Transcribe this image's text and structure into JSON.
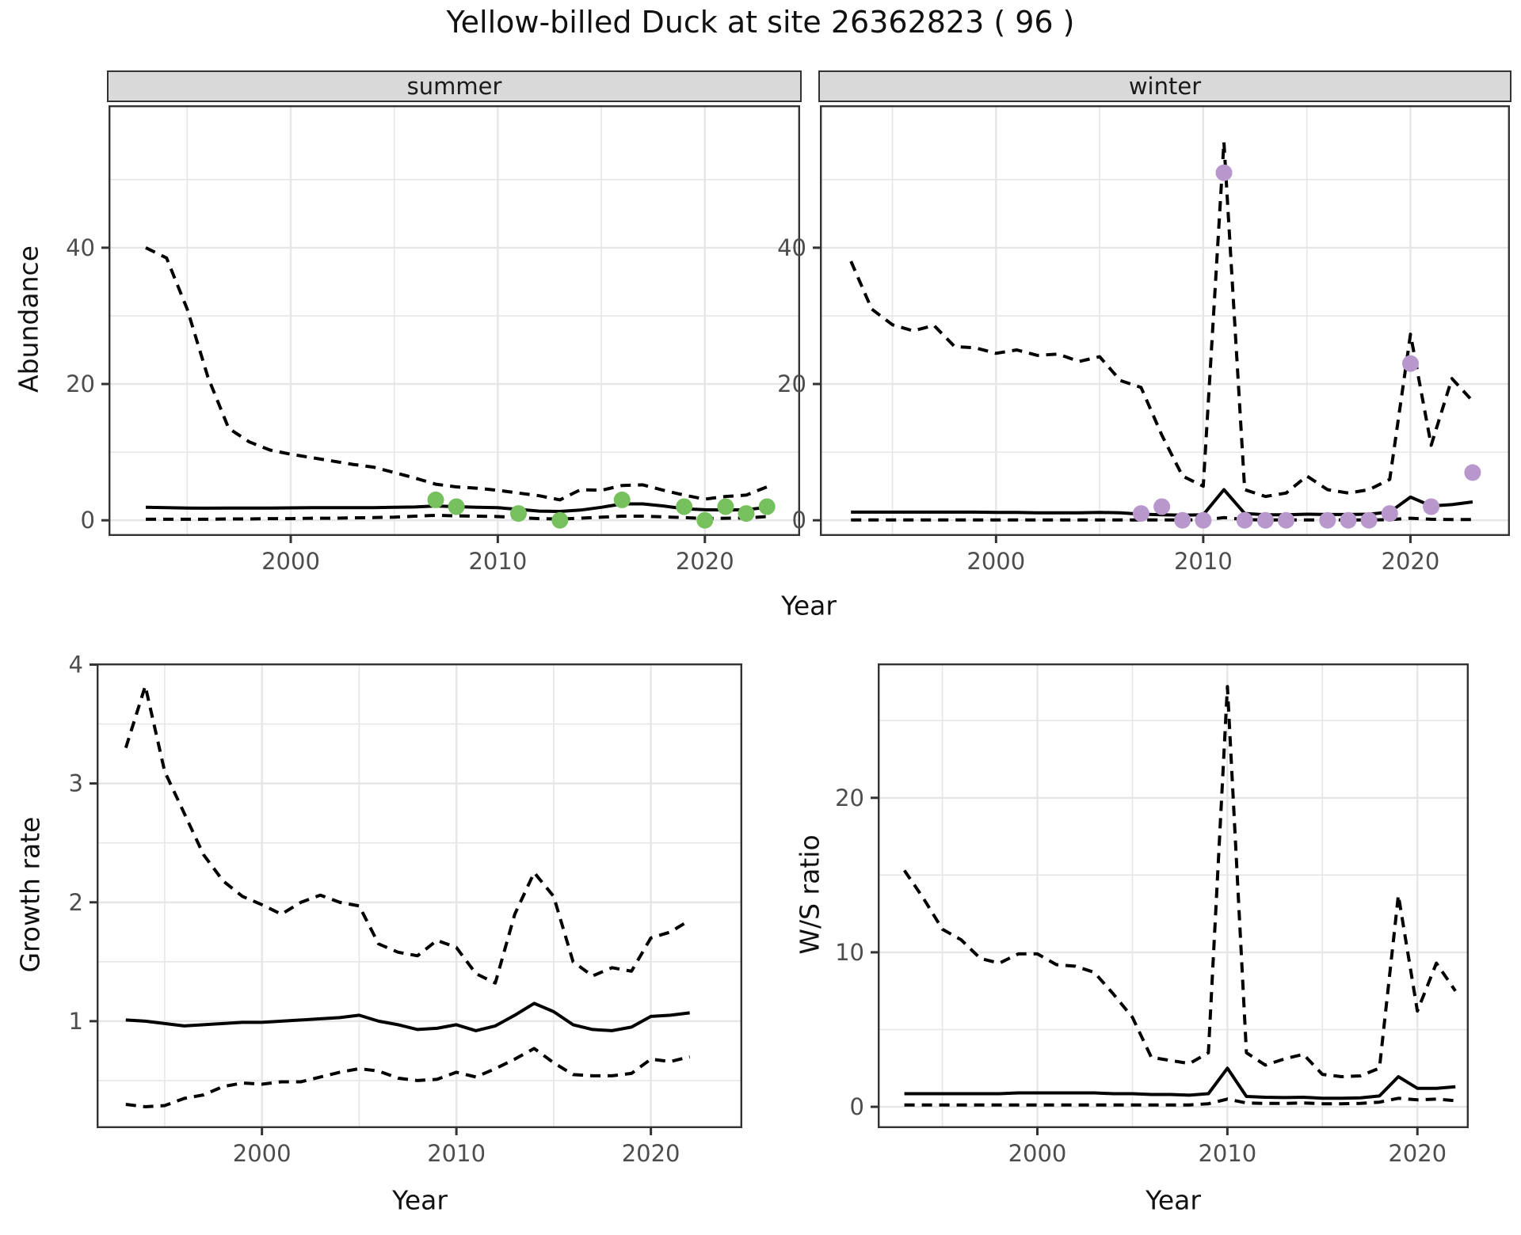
{
  "title": "Yellow-billed Duck at site 26362823 ( 96 )",
  "labels": {
    "facet_summer": "summer",
    "facet_winter": "winter",
    "y_top": "Abundance",
    "y_growth": "Growth rate",
    "y_ws": "W/S ratio",
    "x_top": "Year",
    "x_growth": "Year",
    "x_ws": "Year"
  },
  "colors": {
    "summer_point": "#76c05e",
    "winter_point": "#b897cc",
    "grid": "#e6e6e6",
    "panel_border": "#333333",
    "line": "#000000",
    "strip_bg": "#d9d9d9",
    "tick_text": "#4d4d4d"
  },
  "chart_data": [
    {
      "id": "summer",
      "type": "line",
      "facet_label": "summer",
      "xlabel": "Year",
      "ylabel": "Abundance",
      "xlim": [
        1991.2,
        2024.6
      ],
      "ylim": [
        -2.3,
        60.9
      ],
      "x_ticks": {
        "values": [
          2000,
          2010,
          2020
        ],
        "labels": [
          "2000",
          "2010",
          "2020"
        ]
      },
      "y_ticks": {
        "values": [
          0,
          20,
          40
        ],
        "labels": [
          "0",
          "20",
          "40"
        ]
      },
      "x_grid_minor": [
        1995,
        2005,
        2015
      ],
      "y_grid_minor": [
        10,
        30,
        50
      ],
      "years": [
        1993,
        1994,
        1995,
        1996,
        1997,
        1998,
        1999,
        2000,
        2001,
        2002,
        2003,
        2004,
        2005,
        2006,
        2007,
        2008,
        2009,
        2010,
        2011,
        2012,
        2013,
        2014,
        2015,
        2016,
        2017,
        2018,
        2019,
        2020,
        2021,
        2022,
        2023
      ],
      "series": [
        {
          "name": "upper_ci",
          "style": "dashed",
          "values": [
            40,
            38.5,
            31,
            21,
            13.5,
            11.5,
            10.3,
            9.7,
            9.2,
            8.7,
            8.2,
            7.8,
            7.0,
            6.2,
            5.3,
            4.9,
            4.7,
            4.4,
            4.0,
            3.6,
            3.0,
            4.5,
            4.4,
            5.1,
            5.2,
            4.4,
            3.7,
            3.1,
            3.5,
            3.7,
            4.9
          ]
        },
        {
          "name": "median",
          "style": "solid",
          "values": [
            1.9,
            1.85,
            1.8,
            1.78,
            1.8,
            1.8,
            1.8,
            1.82,
            1.85,
            1.85,
            1.85,
            1.85,
            1.9,
            1.95,
            2.1,
            2.0,
            1.9,
            1.85,
            1.6,
            1.35,
            1.3,
            1.5,
            1.9,
            2.4,
            2.4,
            2.1,
            1.7,
            1.55,
            1.5,
            1.55,
            1.9
          ]
        },
        {
          "name": "lower_ci",
          "style": "dashed",
          "values": [
            0.15,
            0.15,
            0.15,
            0.15,
            0.2,
            0.2,
            0.25,
            0.25,
            0.3,
            0.3,
            0.35,
            0.4,
            0.47,
            0.6,
            0.73,
            0.65,
            0.6,
            0.55,
            0.4,
            0.25,
            0.2,
            0.3,
            0.45,
            0.6,
            0.6,
            0.5,
            0.4,
            0.25,
            0.3,
            0.35,
            0.55
          ]
        }
      ],
      "points": {
        "name": "observed_counts",
        "color_key": "summer_point",
        "years": [
          2007,
          2008,
          2011,
          2013,
          2016,
          2019,
          2020,
          2021,
          2022,
          2023
        ],
        "values": [
          3,
          2,
          1,
          0,
          3,
          2,
          0,
          2,
          1,
          2
        ]
      }
    },
    {
      "id": "winter",
      "type": "line",
      "facet_label": "winter",
      "xlabel": "Year",
      "ylabel": "Abundance",
      "xlim": [
        1991.5,
        2024.8
      ],
      "ylim": [
        -2.3,
        60.9
      ],
      "x_ticks": {
        "values": [
          2000,
          2010,
          2020
        ],
        "labels": [
          "2000",
          "2010",
          "2020"
        ]
      },
      "y_ticks": {
        "values": [
          0,
          20,
          40
        ],
        "labels": [
          "0",
          "20",
          "40"
        ]
      },
      "x_grid_minor": [
        1995,
        2005,
        2015
      ],
      "y_grid_minor": [
        10,
        30,
        50
      ],
      "years": [
        1993,
        1994,
        1995,
        1996,
        1997,
        1998,
        1999,
        2000,
        2001,
        2002,
        2003,
        2004,
        2005,
        2006,
        2007,
        2008,
        2009,
        2010,
        2011,
        2012,
        2013,
        2014,
        2015,
        2016,
        2017,
        2018,
        2019,
        2020,
        2021,
        2022,
        2023
      ],
      "series": [
        {
          "name": "upper_ci",
          "style": "dashed",
          "values": [
            38,
            31,
            28.7,
            27.8,
            28.6,
            25.5,
            25.3,
            24.5,
            25,
            24.2,
            24.4,
            23.3,
            24,
            20.5,
            19.5,
            12.5,
            6.5,
            5,
            55.5,
            4.5,
            3.5,
            4,
            6.5,
            4.5,
            4,
            4.5,
            6,
            27.3,
            11,
            20.8,
            17.5
          ]
        },
        {
          "name": "median",
          "style": "solid",
          "values": [
            1.2,
            1.2,
            1.2,
            1.2,
            1.2,
            1.2,
            1.2,
            1.15,
            1.15,
            1.1,
            1.1,
            1.1,
            1.15,
            1.1,
            0.9,
            0.8,
            0.75,
            0.8,
            4.5,
            1.0,
            0.8,
            0.8,
            0.9,
            0.85,
            0.85,
            0.9,
            1.2,
            3.4,
            2.1,
            2.3,
            2.7
          ]
        },
        {
          "name": "lower_ci",
          "style": "dashed",
          "values": [
            0.05,
            0.05,
            0.05,
            0.05,
            0.05,
            0.05,
            0.05,
            0.05,
            0.05,
            0.05,
            0.05,
            0.05,
            0.05,
            0.05,
            0.05,
            0.05,
            0.05,
            0.05,
            0.4,
            0.1,
            0.05,
            0.05,
            0.05,
            0.05,
            0.05,
            0.05,
            0.1,
            0.3,
            0.15,
            0.1,
            0.1
          ]
        }
      ],
      "points": {
        "name": "observed_counts",
        "color_key": "winter_point",
        "years": [
          2007,
          2008,
          2009,
          2010,
          2011,
          2012,
          2013,
          2014,
          2016,
          2017,
          2018,
          2019,
          2020,
          2021,
          2023
        ],
        "values": [
          1,
          2,
          0,
          0,
          51,
          0,
          0,
          0,
          0,
          0,
          0,
          1,
          23,
          2,
          7
        ]
      }
    },
    {
      "id": "growth",
      "type": "line",
      "facet_label": "",
      "xlabel": "Year",
      "ylabel": "Growth rate",
      "xlim": [
        1991.5,
        2024.7
      ],
      "ylim": [
        0.1,
        4.01
      ],
      "x_ticks": {
        "values": [
          2000,
          2010,
          2020
        ],
        "labels": [
          "2000",
          "2010",
          "2020"
        ]
      },
      "y_ticks": {
        "values": [
          1,
          2,
          3,
          4
        ],
        "labels": [
          "1",
          "2",
          "3",
          "4"
        ]
      },
      "x_grid_minor": [
        1995,
        2005,
        2015
      ],
      "y_grid_minor": [
        0.5,
        1.5,
        2.5,
        3.5
      ],
      "years": [
        1993,
        1994,
        1995,
        1996,
        1997,
        1998,
        1999,
        2000,
        2001,
        2002,
        2003,
        2004,
        2005,
        2006,
        2007,
        2008,
        2009,
        2010,
        2011,
        2012,
        2013,
        2014,
        2015,
        2016,
        2017,
        2018,
        2019,
        2020,
        2021,
        2022
      ],
      "series": [
        {
          "name": "upper_ci",
          "style": "dashed",
          "values": [
            3.3,
            3.82,
            3.1,
            2.75,
            2.4,
            2.18,
            2.05,
            1.98,
            1.9,
            2.0,
            2.06,
            2.0,
            1.97,
            1.65,
            1.58,
            1.55,
            1.68,
            1.62,
            1.4,
            1.32,
            1.9,
            2.25,
            2.05,
            1.5,
            1.38,
            1.45,
            1.42,
            1.7,
            1.75,
            1.85
          ]
        },
        {
          "name": "median",
          "style": "solid",
          "values": [
            1.01,
            1.0,
            0.98,
            0.96,
            0.97,
            0.98,
            0.99,
            0.99,
            1.0,
            1.01,
            1.02,
            1.03,
            1.05,
            1.0,
            0.97,
            0.93,
            0.94,
            0.97,
            0.92,
            0.96,
            1.05,
            1.15,
            1.08,
            0.97,
            0.93,
            0.92,
            0.95,
            1.04,
            1.05,
            1.07
          ]
        },
        {
          "name": "lower_ci",
          "style": "dashed",
          "values": [
            0.3,
            0.28,
            0.29,
            0.35,
            0.38,
            0.45,
            0.48,
            0.47,
            0.49,
            0.49,
            0.53,
            0.57,
            0.6,
            0.58,
            0.52,
            0.5,
            0.51,
            0.57,
            0.53,
            0.6,
            0.68,
            0.77,
            0.65,
            0.55,
            0.54,
            0.54,
            0.56,
            0.68,
            0.66,
            0.7
          ]
        }
      ],
      "points": null
    },
    {
      "id": "ws",
      "type": "line",
      "facet_label": "",
      "xlabel": "Year",
      "ylabel": "W/S ratio",
      "xlim": [
        1991.6,
        2022.7
      ],
      "ylim": [
        -1.38,
        28.7
      ],
      "x_ticks": {
        "values": [
          2000,
          2010,
          2020
        ],
        "labels": [
          "2000",
          "2010",
          "2020"
        ]
      },
      "y_ticks": {
        "values": [
          0,
          10,
          20
        ],
        "labels": [
          "0",
          "10",
          "20"
        ]
      },
      "x_grid_minor": [
        1995,
        2005,
        2015
      ],
      "y_grid_minor": [
        5,
        15,
        25
      ],
      "years": [
        1993,
        1994,
        1995,
        1996,
        1997,
        1998,
        1999,
        2000,
        2001,
        2002,
        2003,
        2004,
        2005,
        2006,
        2007,
        2008,
        2009,
        2010,
        2011,
        2012,
        2013,
        2014,
        2015,
        2016,
        2017,
        2018,
        2019,
        2020,
        2021,
        2022
      ],
      "series": [
        {
          "name": "upper_ci",
          "style": "dashed",
          "values": [
            15.3,
            13.5,
            11.5,
            10.8,
            9.6,
            9.3,
            9.9,
            9.9,
            9.2,
            9.1,
            8.7,
            7.3,
            5.8,
            3.2,
            3.0,
            2.8,
            3.5,
            27.2,
            3.5,
            2.7,
            3.1,
            3.4,
            2.1,
            1.95,
            2.0,
            2.5,
            13.7,
            6.2,
            9.3,
            7.5
          ]
        },
        {
          "name": "median",
          "style": "solid",
          "values": [
            0.85,
            0.85,
            0.85,
            0.85,
            0.85,
            0.85,
            0.9,
            0.9,
            0.9,
            0.9,
            0.9,
            0.85,
            0.85,
            0.8,
            0.8,
            0.75,
            0.85,
            2.5,
            0.67,
            0.62,
            0.6,
            0.62,
            0.55,
            0.55,
            0.58,
            0.7,
            1.95,
            1.2,
            1.2,
            1.3
          ]
        },
        {
          "name": "lower_ci",
          "style": "dashed",
          "values": [
            0.12,
            0.12,
            0.12,
            0.12,
            0.12,
            0.12,
            0.12,
            0.12,
            0.12,
            0.12,
            0.12,
            0.12,
            0.12,
            0.12,
            0.12,
            0.12,
            0.2,
            0.5,
            0.25,
            0.22,
            0.22,
            0.25,
            0.2,
            0.2,
            0.22,
            0.3,
            0.55,
            0.45,
            0.5,
            0.4
          ]
        }
      ],
      "points": null
    }
  ]
}
